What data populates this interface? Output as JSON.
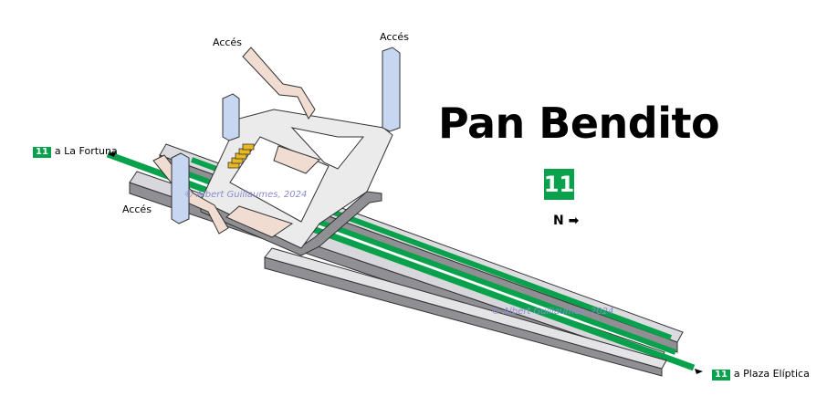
{
  "station": {
    "name": "Pan Bendito",
    "line": "11"
  },
  "compass": {
    "label": "N",
    "arrow": "➡"
  },
  "labels": {
    "access_top_left": "Accés",
    "access_top_right": "Accés",
    "access_left": "Accés",
    "dir_left_line": "11",
    "dir_left_text": "a La Fortuna",
    "dir_right_line": "11",
    "dir_right_text": "a Plaza Elíptica"
  },
  "watermark": {
    "text": "© Albert Guillaumes, 2024"
  },
  "colors": {
    "line_green": "#0aa14d",
    "platform_fill": "#dcdce0",
    "platform_side": "#8f8f94",
    "hall_fill": "#ebebeb",
    "stair_fill": "#f0dcd0",
    "elevator_fill": "#c7d7f2",
    "escalator_fill": "#e8b820"
  }
}
